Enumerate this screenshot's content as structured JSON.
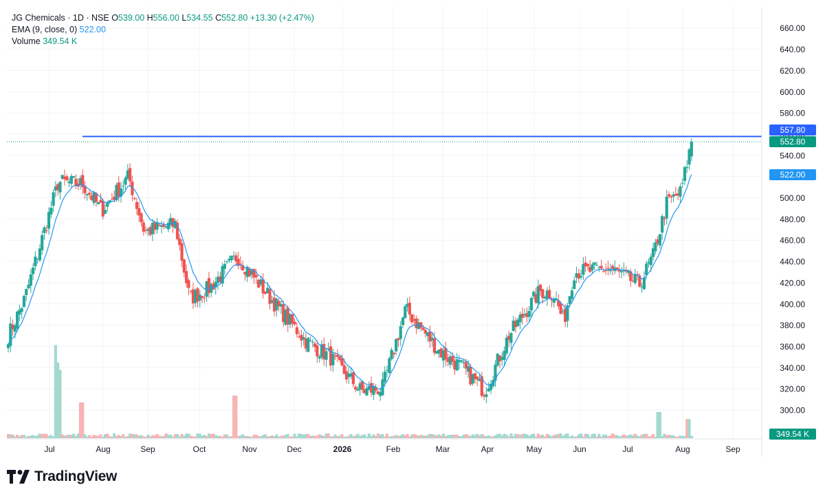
{
  "legend": {
    "symbol": "JG Chemicals · 1D · NSE",
    "o_label": "O",
    "o_value": "539.00",
    "h_label": "H",
    "h_value": "556.00",
    "l_label": "L",
    "l_value": "534.55",
    "c_label": "C",
    "c_value": "552.80",
    "change": "+13.30 (+2.47%)",
    "ema_label": "EMA (9, close, 0)",
    "ema_value": "522.00",
    "vol_label": "Volume",
    "vol_value": "349.54 K"
  },
  "brand": {
    "name": "TradingView"
  },
  "colors": {
    "up": "#089981",
    "down": "#f23645",
    "up_body": "#26a69a",
    "down_body": "#ef5350",
    "ema": "#2196f3",
    "hline": "#2962ff",
    "grid": "#f0f3fa"
  },
  "tags": {
    "hline_value": "557.80",
    "last_price": "552.80",
    "ema_value": "522.00",
    "volume": "349.54 K"
  },
  "chart_data": {
    "type": "candlestick",
    "y_axis": {
      "min": 290,
      "max": 670,
      "ticks": [
        "660.00",
        "640.00",
        "620.00",
        "600.00",
        "580.00",
        "560.00",
        "540.00",
        "520.00",
        "500.00",
        "480.00",
        "460.00",
        "440.00",
        "420.00",
        "400.00",
        "380.00",
        "360.00",
        "340.00",
        "320.00",
        "300.00"
      ]
    },
    "x_axis_labels": [
      "Jul",
      "Aug",
      "Sep",
      "Oct",
      "Nov",
      "Dec",
      "2026",
      "Feb",
      "Mar",
      "Apr",
      "May",
      "Jun",
      "Jul",
      "Aug",
      "Sep"
    ],
    "horizontal_line": 557.8,
    "last_close": 552.8,
    "ema_last": 522.0,
    "volume_last": "349.54K",
    "close_series_keypoints": [
      {
        "t": "Jun 20",
        "close": 370
      },
      {
        "t": "Jul 3",
        "close": 405
      },
      {
        "t": "Jul 9",
        "close": 515
      },
      {
        "t": "Jul 22",
        "close": 513
      },
      {
        "t": "Aug 5",
        "close": 488
      },
      {
        "t": "Aug 20",
        "close": 520
      },
      {
        "t": "Sep 3",
        "close": 468
      },
      {
        "t": "Sep 20",
        "close": 475
      },
      {
        "t": "Oct 5",
        "close": 405
      },
      {
        "t": "Oct 15",
        "close": 415
      },
      {
        "t": "Oct 28",
        "close": 445
      },
      {
        "t": "Nov 15",
        "close": 400
      },
      {
        "t": "Dec 5",
        "close": 365
      },
      {
        "t": "Dec 25",
        "close": 350
      },
      {
        "t": "Jan 15",
        "close": 318
      },
      {
        "t": "Jan 25",
        "close": 320
      },
      {
        "t": "Feb 5",
        "close": 395
      },
      {
        "t": "Feb 20",
        "close": 355
      },
      {
        "t": "Mar 10",
        "close": 340
      },
      {
        "t": "Mar 25",
        "close": 318
      },
      {
        "t": "Apr 10",
        "close": 370
      },
      {
        "t": "Apr 25",
        "close": 412
      },
      {
        "t": "May 5",
        "close": 410
      },
      {
        "t": "May 15",
        "close": 383
      },
      {
        "t": "May 25",
        "close": 430
      },
      {
        "t": "Jun 10",
        "close": 433
      },
      {
        "t": "Jun 25",
        "close": 418
      },
      {
        "t": "Jul 5",
        "close": 445
      },
      {
        "t": "Jul 15",
        "close": 495
      },
      {
        "t": "Jul 25",
        "close": 505
      },
      {
        "t": "Aug 5",
        "close": 552.8
      }
    ]
  }
}
